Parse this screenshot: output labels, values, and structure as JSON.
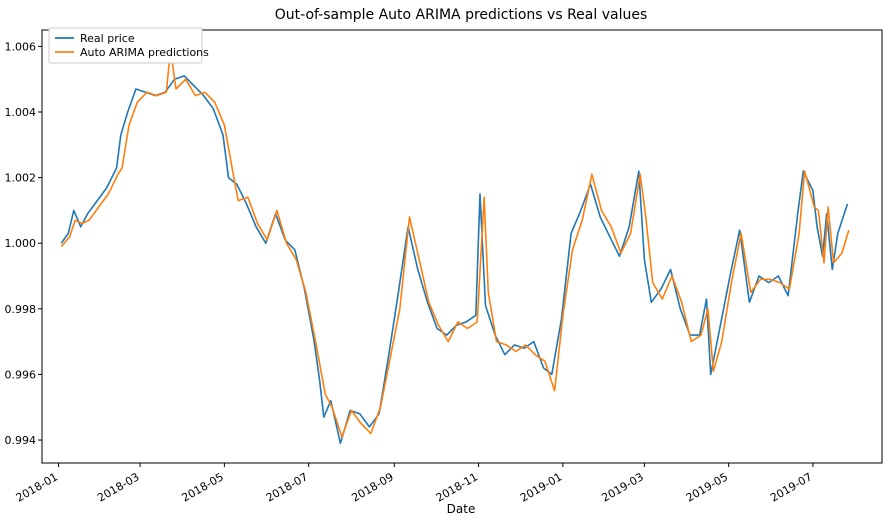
{
  "chart_data": {
    "type": "line",
    "title": "Out-of-sample Auto ARIMA predictions vs Real values",
    "xlabel": "Date",
    "ylabel": "",
    "xlim": [
      "2017-12-20",
      "2019-08-20"
    ],
    "ylim": [
      0.9933,
      1.0065
    ],
    "grid": false,
    "legend_position": "upper-left",
    "x_ticks": [
      "2018-01",
      "2018-03",
      "2018-05",
      "2018-07",
      "2018-09",
      "2018-11",
      "2019-01",
      "2019-03",
      "2019-05",
      "2019-07"
    ],
    "y_ticks": [
      "0.994",
      "0.996",
      "0.998",
      "1.000",
      "1.002",
      "1.004",
      "1.006"
    ],
    "series": [
      {
        "name": "Real price",
        "color": "#1f77b4",
        "points": [
          [
            "2018-01-03",
            1.0
          ],
          [
            "2018-01-08",
            1.0003
          ],
          [
            "2018-01-12",
            1.001
          ],
          [
            "2018-01-17",
            1.0005
          ],
          [
            "2018-01-22",
            1.0009
          ],
          [
            "2018-01-29",
            1.0013
          ],
          [
            "2018-02-05",
            1.0017
          ],
          [
            "2018-02-12",
            1.0023
          ],
          [
            "2018-02-15",
            1.0033
          ],
          [
            "2018-02-20",
            1.004
          ],
          [
            "2018-02-26",
            1.0047
          ],
          [
            "2018-03-05",
            1.0046
          ],
          [
            "2018-03-12",
            1.0045
          ],
          [
            "2018-03-19",
            1.0046
          ],
          [
            "2018-03-26",
            1.005
          ],
          [
            "2018-04-02",
            1.0051
          ],
          [
            "2018-04-09",
            1.0048
          ],
          [
            "2018-04-16",
            1.0045
          ],
          [
            "2018-04-23",
            1.0041
          ],
          [
            "2018-04-30",
            1.0033
          ],
          [
            "2018-05-04",
            1.002
          ],
          [
            "2018-05-10",
            1.0018
          ],
          [
            "2018-05-17",
            1.0012
          ],
          [
            "2018-05-24",
            1.0005
          ],
          [
            "2018-05-31",
            1.0
          ],
          [
            "2018-06-07",
            1.0009
          ],
          [
            "2018-06-14",
            1.0001
          ],
          [
            "2018-06-21",
            0.9998
          ],
          [
            "2018-06-28",
            0.9986
          ],
          [
            "2018-07-05",
            0.997
          ],
          [
            "2018-07-09",
            0.9958
          ],
          [
            "2018-07-12",
            0.9947
          ],
          [
            "2018-07-17",
            0.9952
          ],
          [
            "2018-07-24",
            0.9939
          ],
          [
            "2018-07-31",
            0.9949
          ],
          [
            "2018-08-07",
            0.9948
          ],
          [
            "2018-08-14",
            0.9944
          ],
          [
            "2018-08-21",
            0.9948
          ],
          [
            "2018-08-28",
            0.9966
          ],
          [
            "2018-09-04",
            0.9985
          ],
          [
            "2018-09-11",
            1.0005
          ],
          [
            "2018-09-18",
            0.9992
          ],
          [
            "2018-09-25",
            0.9982
          ],
          [
            "2018-10-02",
            0.9974
          ],
          [
            "2018-10-09",
            0.9972
          ],
          [
            "2018-10-16",
            0.9975
          ],
          [
            "2018-10-23",
            0.9976
          ],
          [
            "2018-10-30",
            0.9978
          ],
          [
            "2018-11-02",
            1.0015
          ],
          [
            "2018-11-06",
            0.9981
          ],
          [
            "2018-11-13",
            0.9972
          ],
          [
            "2018-11-20",
            0.9966
          ],
          [
            "2018-11-27",
            0.9969
          ],
          [
            "2018-12-04",
            0.9968
          ],
          [
            "2018-12-11",
            0.997
          ],
          [
            "2018-12-18",
            0.9962
          ],
          [
            "2018-12-24",
            0.996
          ],
          [
            "2018-12-31",
            0.9977
          ],
          [
            "2019-01-07",
            1.0003
          ],
          [
            "2019-01-14",
            1.001
          ],
          [
            "2019-01-21",
            1.0018
          ],
          [
            "2019-01-28",
            1.0008
          ],
          [
            "2019-02-04",
            1.0002
          ],
          [
            "2019-02-11",
            0.9996
          ],
          [
            "2019-02-18",
            1.0005
          ],
          [
            "2019-02-25",
            1.0022
          ],
          [
            "2019-03-01",
            0.9995
          ],
          [
            "2019-03-06",
            0.9982
          ],
          [
            "2019-03-13",
            0.9986
          ],
          [
            "2019-03-20",
            0.9992
          ],
          [
            "2019-03-27",
            0.998
          ],
          [
            "2019-04-03",
            0.9972
          ],
          [
            "2019-04-10",
            0.9972
          ],
          [
            "2019-04-15",
            0.9983
          ],
          [
            "2019-04-18",
            0.996
          ],
          [
            "2019-04-25",
            0.9975
          ],
          [
            "2019-05-02",
            0.999
          ],
          [
            "2019-05-09",
            1.0004
          ],
          [
            "2019-05-16",
            0.9982
          ],
          [
            "2019-05-23",
            0.999
          ],
          [
            "2019-05-30",
            0.9988
          ],
          [
            "2019-06-06",
            0.999
          ],
          [
            "2019-06-13",
            0.9984
          ],
          [
            "2019-06-20",
            1.0009
          ],
          [
            "2019-06-24",
            1.0022
          ],
          [
            "2019-07-01",
            1.0016
          ],
          [
            "2019-07-04",
            1.0005
          ],
          [
            "2019-07-08",
            0.9996
          ],
          [
            "2019-07-11",
            1.0009
          ],
          [
            "2019-07-15",
            0.9992
          ],
          [
            "2019-07-19",
            1.0003
          ],
          [
            "2019-07-26",
            1.0012
          ]
        ]
      },
      {
        "name": "Auto ARIMA predictions",
        "color": "#ff7f0e",
        "points": [
          [
            "2018-01-03",
            0.9999
          ],
          [
            "2018-01-09",
            1.0002
          ],
          [
            "2018-01-13",
            1.0007
          ],
          [
            "2018-01-18",
            1.0006
          ],
          [
            "2018-01-23",
            1.0007
          ],
          [
            "2018-01-30",
            1.0011
          ],
          [
            "2018-02-06",
            1.0015
          ],
          [
            "2018-02-13",
            1.0021
          ],
          [
            "2018-02-16",
            1.0023
          ],
          [
            "2018-02-21",
            1.0036
          ],
          [
            "2018-02-27",
            1.0043
          ],
          [
            "2018-03-06",
            1.0046
          ],
          [
            "2018-03-13",
            1.0045
          ],
          [
            "2018-03-20",
            1.0046
          ],
          [
            "2018-03-23",
            1.0059
          ],
          [
            "2018-03-27",
            1.0047
          ],
          [
            "2018-04-03",
            1.005
          ],
          [
            "2018-04-10",
            1.0045
          ],
          [
            "2018-04-17",
            1.0046
          ],
          [
            "2018-04-24",
            1.0043
          ],
          [
            "2018-05-01",
            1.0036
          ],
          [
            "2018-05-07",
            1.0022
          ],
          [
            "2018-05-11",
            1.0013
          ],
          [
            "2018-05-18",
            1.0014
          ],
          [
            "2018-05-25",
            1.0006
          ],
          [
            "2018-06-01",
            1.0001
          ],
          [
            "2018-06-08",
            1.001
          ],
          [
            "2018-06-15",
            1.0
          ],
          [
            "2018-06-22",
            0.9995
          ],
          [
            "2018-06-29",
            0.9985
          ],
          [
            "2018-07-06",
            0.997
          ],
          [
            "2018-07-13",
            0.9954
          ],
          [
            "2018-07-18",
            0.995
          ],
          [
            "2018-07-25",
            0.9941
          ],
          [
            "2018-08-01",
            0.9949
          ],
          [
            "2018-08-08",
            0.9945
          ],
          [
            "2018-08-15",
            0.9942
          ],
          [
            "2018-08-22",
            0.995
          ],
          [
            "2018-08-29",
            0.9965
          ],
          [
            "2018-09-05",
            0.998
          ],
          [
            "2018-09-12",
            1.0008
          ],
          [
            "2018-09-19",
            0.9995
          ],
          [
            "2018-09-26",
            0.9982
          ],
          [
            "2018-10-03",
            0.9975
          ],
          [
            "2018-10-10",
            0.997
          ],
          [
            "2018-10-17",
            0.9976
          ],
          [
            "2018-10-24",
            0.9974
          ],
          [
            "2018-10-31",
            0.9976
          ],
          [
            "2018-11-05",
            1.0014
          ],
          [
            "2018-11-08",
            0.9985
          ],
          [
            "2018-11-14",
            0.997
          ],
          [
            "2018-11-21",
            0.9969
          ],
          [
            "2018-11-28",
            0.9967
          ],
          [
            "2018-12-05",
            0.9969
          ],
          [
            "2018-12-12",
            0.9966
          ],
          [
            "2018-12-19",
            0.9964
          ],
          [
            "2018-12-26",
            0.9955
          ],
          [
            "2019-01-01",
            0.9978
          ],
          [
            "2019-01-08",
            0.9998
          ],
          [
            "2019-01-15",
            1.0007
          ],
          [
            "2019-01-22",
            1.0021
          ],
          [
            "2019-01-29",
            1.001
          ],
          [
            "2019-02-05",
            1.0005
          ],
          [
            "2019-02-12",
            0.9997
          ],
          [
            "2019-02-19",
            1.0003
          ],
          [
            "2019-02-26",
            1.0021
          ],
          [
            "2019-03-02",
            1.0008
          ],
          [
            "2019-03-07",
            0.9988
          ],
          [
            "2019-03-14",
            0.9983
          ],
          [
            "2019-03-21",
            0.999
          ],
          [
            "2019-03-28",
            0.9982
          ],
          [
            "2019-04-04",
            0.997
          ],
          [
            "2019-04-11",
            0.9972
          ],
          [
            "2019-04-16",
            0.998
          ],
          [
            "2019-04-20",
            0.9961
          ],
          [
            "2019-04-26",
            0.997
          ],
          [
            "2019-05-03",
            0.9988
          ],
          [
            "2019-05-10",
            1.0003
          ],
          [
            "2019-05-17",
            0.9985
          ],
          [
            "2019-05-24",
            0.9989
          ],
          [
            "2019-05-31",
            0.9989
          ],
          [
            "2019-06-07",
            0.9988
          ],
          [
            "2019-06-14",
            0.9986
          ],
          [
            "2019-06-21",
            1.0003
          ],
          [
            "2019-06-25",
            1.0022
          ],
          [
            "2019-07-02",
            1.0011
          ],
          [
            "2019-07-05",
            1.001
          ],
          [
            "2019-07-09",
            0.9994
          ],
          [
            "2019-07-12",
            1.0011
          ],
          [
            "2019-07-16",
            0.9994
          ],
          [
            "2019-07-22",
            0.9997
          ],
          [
            "2019-07-27",
            1.0004
          ]
        ]
      }
    ]
  }
}
